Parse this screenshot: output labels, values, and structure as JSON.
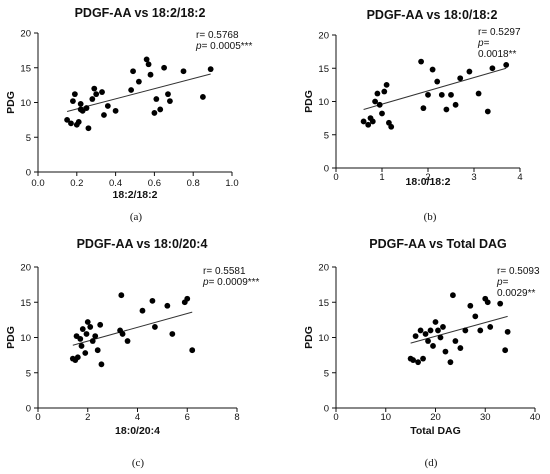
{
  "chart_data": [
    {
      "type": "scatter",
      "panel": "(a)",
      "title": "PDGF-AA vs 18:2/18:2",
      "xlabel": "18:2/18:2",
      "ylabel": "PDG",
      "xlim": [
        0.0,
        1.0
      ],
      "ylim": [
        0,
        20
      ],
      "xticks": [
        "0.0",
        "0.2",
        "0.4",
        "0.6",
        "0.8",
        "1.0"
      ],
      "yticks": [
        "0",
        "5",
        "10",
        "15",
        "20"
      ],
      "stats": [
        "r= 0.5768",
        "p",
        "= 0.0005***"
      ],
      "points": [
        [
          0.15,
          7.5
        ],
        [
          0.17,
          7.0
        ],
        [
          0.18,
          10.2
        ],
        [
          0.19,
          11.2
        ],
        [
          0.2,
          6.8
        ],
        [
          0.21,
          7.2
        ],
        [
          0.22,
          9.8
        ],
        [
          0.22,
          9.0
        ],
        [
          0.23,
          8.8
        ],
        [
          0.25,
          9.2
        ],
        [
          0.26,
          6.3
        ],
        [
          0.28,
          10.5
        ],
        [
          0.29,
          12.0
        ],
        [
          0.3,
          11.2
        ],
        [
          0.33,
          11.5
        ],
        [
          0.34,
          8.2
        ],
        [
          0.36,
          9.5
        ],
        [
          0.4,
          8.8
        ],
        [
          0.48,
          11.8
        ],
        [
          0.49,
          14.5
        ],
        [
          0.52,
          13.0
        ],
        [
          0.56,
          16.2
        ],
        [
          0.57,
          15.5
        ],
        [
          0.58,
          14.0
        ],
        [
          0.6,
          8.5
        ],
        [
          0.61,
          10.5
        ],
        [
          0.63,
          9.0
        ],
        [
          0.65,
          15.0
        ],
        [
          0.67,
          11.2
        ],
        [
          0.68,
          10.2
        ],
        [
          0.75,
          14.5
        ],
        [
          0.85,
          10.8
        ],
        [
          0.89,
          14.8
        ]
      ],
      "fit": [
        [
          0.15,
          8.7
        ],
        [
          0.89,
          14.1
        ]
      ]
    },
    {
      "type": "scatter",
      "panel": "(b)",
      "title": "PDGF-AA vs 18:0/18:2",
      "xlabel": "18:0/18:2",
      "ylabel": "PDG",
      "xlim": [
        0,
        4
      ],
      "ylim": [
        0,
        20
      ],
      "xticks": [
        "0",
        "1",
        "2",
        "3",
        "4"
      ],
      "yticks": [
        "0",
        "5",
        "10",
        "15",
        "20"
      ],
      "stats": [
        "r= 0.5297",
        "p",
        "=",
        "0.0018**"
      ],
      "points": [
        [
          0.6,
          7.0
        ],
        [
          0.7,
          6.5
        ],
        [
          0.75,
          7.5
        ],
        [
          0.8,
          7.0
        ],
        [
          0.85,
          10.0
        ],
        [
          0.9,
          11.2
        ],
        [
          0.95,
          9.5
        ],
        [
          1.0,
          8.2
        ],
        [
          1.05,
          11.5
        ],
        [
          1.1,
          12.5
        ],
        [
          1.15,
          6.8
        ],
        [
          1.2,
          6.2
        ],
        [
          1.85,
          16.0
        ],
        [
          1.9,
          9.0
        ],
        [
          2.0,
          11.0
        ],
        [
          2.1,
          14.8
        ],
        [
          2.2,
          13.0
        ],
        [
          2.3,
          11.0
        ],
        [
          2.4,
          8.8
        ],
        [
          2.5,
          11.0
        ],
        [
          2.6,
          9.5
        ],
        [
          2.7,
          13.5
        ],
        [
          2.9,
          14.5
        ],
        [
          3.1,
          11.2
        ],
        [
          3.3,
          8.5
        ],
        [
          3.4,
          15.0
        ],
        [
          3.7,
          15.5
        ]
      ],
      "fit": [
        [
          0.6,
          8.8
        ],
        [
          3.7,
          15.0
        ]
      ]
    },
    {
      "type": "scatter",
      "panel": "(c)",
      "title": "PDGF-AA vs 18:0/20:4",
      "xlabel": "18:0/20:4",
      "ylabel": "PDG",
      "xlim": [
        0,
        8
      ],
      "ylim": [
        0,
        20
      ],
      "xticks": [
        "0",
        "2",
        "4",
        "6",
        "8"
      ],
      "yticks": [
        "0",
        "5",
        "10",
        "15",
        "20"
      ],
      "stats": [
        "r= 0.5581",
        "p",
        "= 0.0009***"
      ],
      "points": [
        [
          1.4,
          7.0
        ],
        [
          1.5,
          6.8
        ],
        [
          1.55,
          10.2
        ],
        [
          1.6,
          7.2
        ],
        [
          1.7,
          9.8
        ],
        [
          1.75,
          8.8
        ],
        [
          1.8,
          11.2
        ],
        [
          1.9,
          7.8
        ],
        [
          1.95,
          10.5
        ],
        [
          2.0,
          12.2
        ],
        [
          2.1,
          11.5
        ],
        [
          2.2,
          9.5
        ],
        [
          2.3,
          10.2
        ],
        [
          2.4,
          8.2
        ],
        [
          2.5,
          11.8
        ],
        [
          2.55,
          6.2
        ],
        [
          3.3,
          11.0
        ],
        [
          3.35,
          16.0
        ],
        [
          3.4,
          10.5
        ],
        [
          3.6,
          9.5
        ],
        [
          4.2,
          13.8
        ],
        [
          4.6,
          15.2
        ],
        [
          4.7,
          11.5
        ],
        [
          5.2,
          14.5
        ],
        [
          5.4,
          10.5
        ],
        [
          5.9,
          15.0
        ],
        [
          6.0,
          15.5
        ],
        [
          6.2,
          8.2
        ]
      ],
      "fit": [
        [
          1.4,
          8.9
        ],
        [
          6.2,
          13.6
        ]
      ]
    },
    {
      "type": "scatter",
      "panel": "(d)",
      "title": "PDGF-AA vs Total DAG",
      "xlabel": "Total DAG",
      "ylabel": "PDG",
      "xlim": [
        0,
        40
      ],
      "ylim": [
        0,
        20
      ],
      "xticks": [
        "0",
        "10",
        "20",
        "30",
        "40"
      ],
      "yticks": [
        "0",
        "5",
        "10",
        "15",
        "20"
      ],
      "stats": [
        "r= 0.5093",
        "p",
        "=",
        "0.0029**"
      ],
      "points": [
        [
          15.0,
          7.0
        ],
        [
          15.5,
          6.8
        ],
        [
          16.0,
          10.2
        ],
        [
          16.5,
          6.5
        ],
        [
          17.0,
          11.0
        ],
        [
          17.5,
          7.0
        ],
        [
          18.0,
          10.5
        ],
        [
          18.5,
          9.5
        ],
        [
          19.0,
          11.0
        ],
        [
          19.5,
          8.8
        ],
        [
          20.0,
          12.2
        ],
        [
          20.5,
          11.0
        ],
        [
          21.0,
          10.0
        ],
        [
          21.5,
          11.5
        ],
        [
          22.0,
          8.0
        ],
        [
          23.0,
          6.5
        ],
        [
          23.5,
          16.0
        ],
        [
          24.0,
          9.5
        ],
        [
          25.0,
          8.5
        ],
        [
          26.0,
          11.0
        ],
        [
          27.0,
          14.5
        ],
        [
          28.0,
          13.0
        ],
        [
          29.0,
          11.0
        ],
        [
          30.0,
          15.5
        ],
        [
          30.5,
          15.0
        ],
        [
          31.0,
          11.5
        ],
        [
          33.0,
          14.8
        ],
        [
          34.0,
          8.2
        ],
        [
          34.5,
          10.8
        ]
      ],
      "fit": [
        [
          15.0,
          9.2
        ],
        [
          34.5,
          13.0
        ]
      ]
    }
  ]
}
